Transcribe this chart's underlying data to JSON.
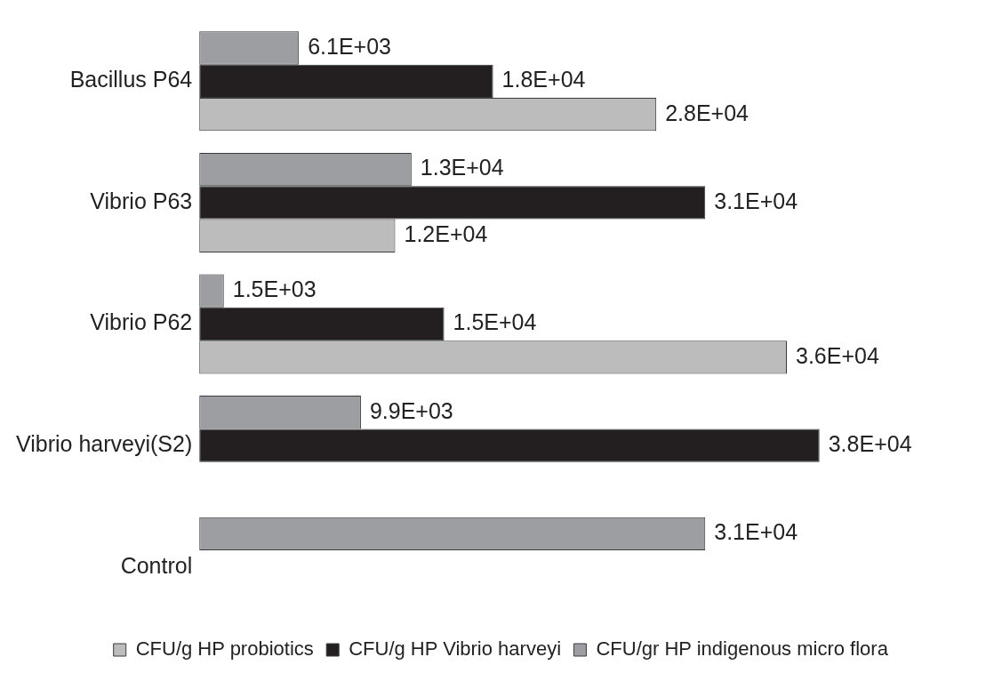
{
  "chart_data": {
    "type": "bar",
    "orientation": "horizontal",
    "categories": [
      "Bacillus P64",
      "Vibrio P63",
      "Vibrio P62",
      "Vibrio harveyi(S2)",
      "Control"
    ],
    "series": [
      {
        "name": "CFU/gr HP indigenous micro flora",
        "color": "#9d9ea2",
        "values": [
          6100,
          13000,
          1500,
          9900,
          31000
        ],
        "value_labels": [
          "6.1E+03",
          "1.3E+04",
          "1.5E+03",
          "9.9E+03",
          "3.1E+04"
        ]
      },
      {
        "name": "CFU/g HP Vibrio harveyi",
        "color": "#231f20",
        "values": [
          18000,
          31000,
          15000,
          38000,
          null
        ],
        "value_labels": [
          "1.8E+04",
          "3.1E+04",
          "1.5E+04",
          "3.8E+04",
          null
        ]
      },
      {
        "name": "CFU/g HP probiotics",
        "color": "#bcbcbc",
        "values": [
          28000,
          12000,
          36000,
          null,
          null
        ],
        "value_labels": [
          "2.8E+04",
          "1.2E+04",
          "3.6E+04",
          null,
          null
        ]
      }
    ],
    "legend": "bottom"
  }
}
